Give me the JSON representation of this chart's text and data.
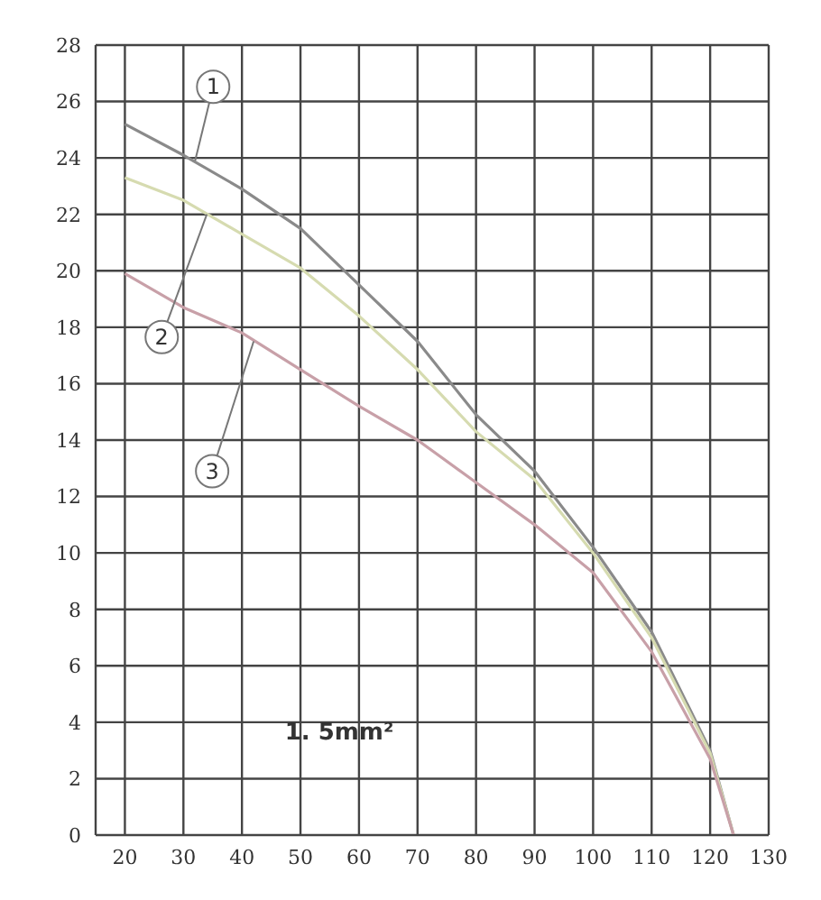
{
  "chart_data": {
    "type": "line",
    "x": [
      20,
      30,
      40,
      50,
      60,
      70,
      80,
      90,
      100,
      110,
      120,
      124
    ],
    "series": [
      {
        "color": "#8a8a8a",
        "values": [
          25.2,
          24.1,
          22.9,
          21.5,
          19.5,
          17.5,
          14.9,
          12.9,
          10.2,
          7.2,
          3.0,
          0
        ]
      },
      {
        "color": "#d6dbb0",
        "values": [
          23.3,
          22.5,
          21.3,
          20.1,
          18.4,
          16.5,
          14.3,
          12.6,
          10.0,
          7.0,
          2.9,
          0
        ]
      },
      {
        "color": "#c8a0a8",
        "values": [
          19.9,
          18.7,
          17.8,
          16.5,
          15.2,
          14.0,
          12.5,
          11.0,
          9.3,
          6.5,
          2.7,
          0
        ]
      }
    ],
    "xlim": [
      15,
      130
    ],
    "xticks": [
      20,
      30,
      40,
      50,
      60,
      70,
      80,
      90,
      100,
      110,
      120,
      130
    ],
    "ylim": [
      0,
      28
    ],
    "yticks": [
      0,
      2,
      4,
      6,
      8,
      10,
      12,
      14,
      16,
      18,
      20,
      22,
      24,
      26,
      28
    ],
    "grid": true,
    "annotations": [
      {
        "text": "1",
        "x": 32,
        "y": 23.9
      },
      {
        "text": "2",
        "x": 34,
        "y": 22.0
      },
      {
        "text": "3",
        "x": 42,
        "y": 17.5
      },
      "1. 5mm²"
    ]
  }
}
